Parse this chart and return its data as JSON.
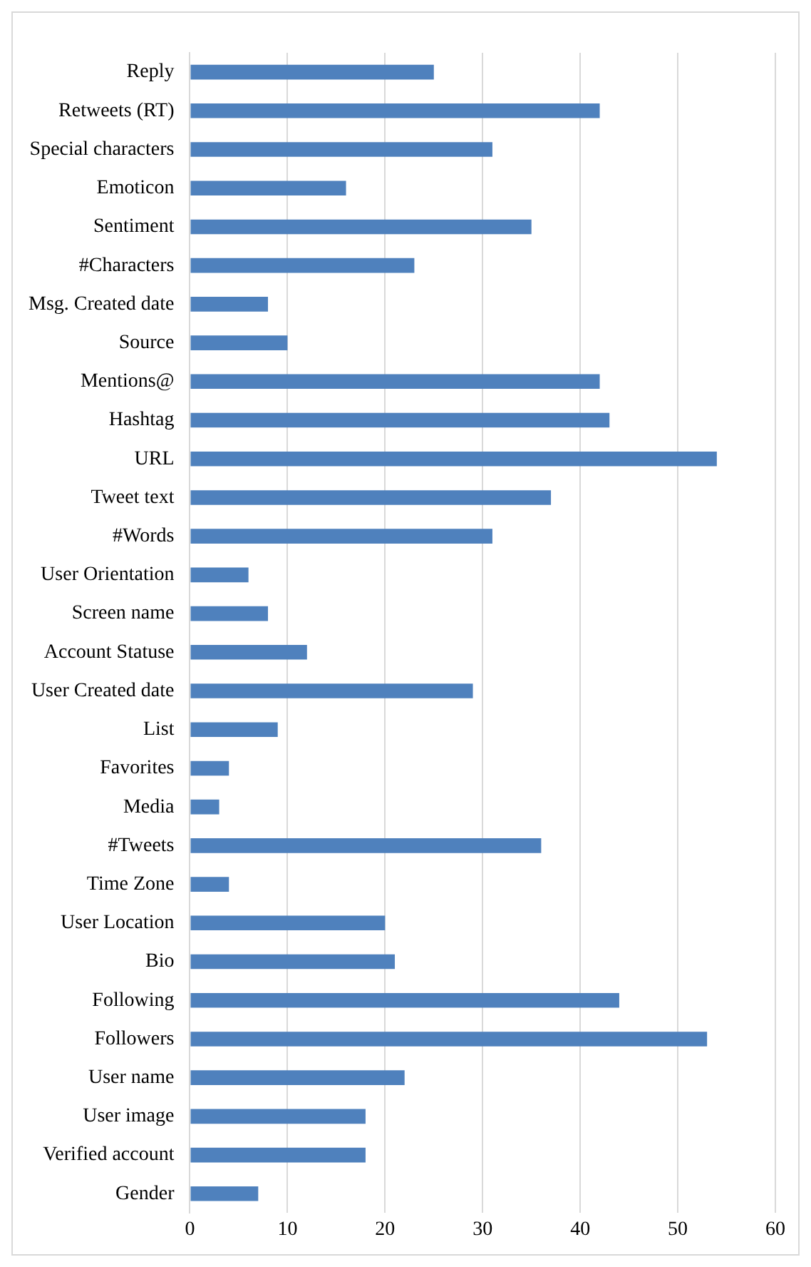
{
  "chart_data": {
    "type": "bar",
    "orientation": "horizontal",
    "categories": [
      "Reply",
      "Retweets (RT)",
      "Special characters",
      "Emoticon",
      "Sentiment",
      "#Characters",
      "Msg. Created date",
      "Source",
      "Mentions@",
      "Hashtag",
      "URL",
      "Tweet text",
      "#Words",
      "User Orientation",
      "Screen name",
      "Account Statuse",
      "User Created date",
      "List",
      "Favorites",
      "Media",
      "#Tweets",
      "Time Zone",
      "User Location",
      "Bio",
      "Following",
      "Followers",
      "User name",
      "User image",
      "Verified account",
      "Gender"
    ],
    "values": [
      25,
      42,
      31,
      16,
      35,
      23,
      8,
      10,
      42,
      43,
      54,
      37,
      31,
      6,
      8,
      12,
      29,
      9,
      4,
      3,
      36,
      4,
      20,
      21,
      44,
      53,
      22,
      18,
      18,
      7
    ],
    "color": "#4f81bd",
    "xlim": [
      0,
      60
    ],
    "xticks": [
      0,
      10,
      20,
      30,
      40,
      50,
      60
    ],
    "grid": "x"
  }
}
